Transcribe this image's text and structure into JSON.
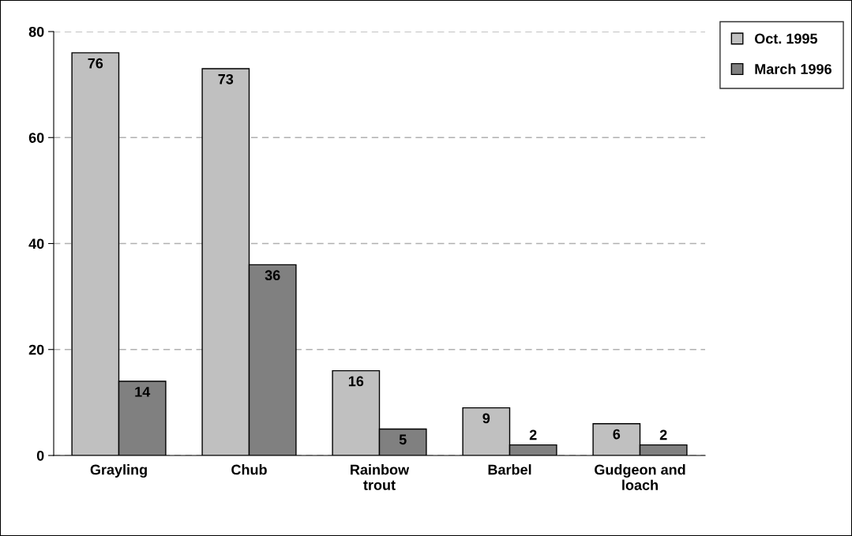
{
  "chart_data": {
    "type": "bar",
    "categories": [
      "Grayling",
      "Chub",
      "Rainbow trout",
      "Barbel",
      "Gudgeon and loach"
    ],
    "series": [
      {
        "name": "Oct. 1995",
        "color": "#c0c0c0",
        "values": [
          76,
          73,
          16,
          9,
          6
        ]
      },
      {
        "name": "March 1996",
        "color": "#808080",
        "values": [
          14,
          36,
          5,
          2,
          2
        ]
      }
    ],
    "ylim": [
      0,
      80
    ],
    "yticks": [
      0,
      20,
      40,
      60,
      80
    ],
    "grid": "y",
    "legend": "top right",
    "data_labels": true
  }
}
